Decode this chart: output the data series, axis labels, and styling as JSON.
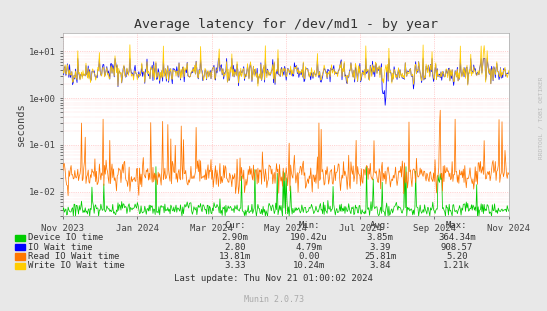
{
  "title": "Average latency for /dev/md1 - by year",
  "ylabel": "seconds",
  "background_color": "#e8e8e8",
  "plot_bg_color": "#ffffff",
  "grid_color": "#ffaaaa",
  "x_labels": [
    "Nov 2023",
    "Jan 2024",
    "Mar 2024",
    "May 2024",
    "Jul 2024",
    "Sep 2024",
    "Nov 2024"
  ],
  "y_tick_labels": [
    "1e-02",
    "1e-01",
    "1e+00",
    "1e+01"
  ],
  "ylim_min": 0.003,
  "ylim_max": 25.0,
  "colors": {
    "device_io": "#00cc00",
    "io_wait": "#0000ff",
    "read_io_wait": "#ff7700",
    "write_io_wait": "#ffcc00"
  },
  "legend": [
    {
      "label": "Device IO time",
      "color": "#00cc00"
    },
    {
      "label": "IO Wait time",
      "color": "#0000ff"
    },
    {
      "label": "Read IO Wait time",
      "color": "#ff7700"
    },
    {
      "label": "Write IO Wait time",
      "color": "#ffcc00"
    }
  ],
  "stats_header": [
    "Cur:",
    "Min:",
    "Avg:",
    "Max:"
  ],
  "stats": [
    [
      "2.90m",
      "190.42u",
      "3.85m",
      "364.34m"
    ],
    [
      "2.80",
      "4.79m",
      "3.39",
      "908.57"
    ],
    [
      "13.81m",
      "0.00",
      "25.81m",
      "5.20"
    ],
    [
      "3.33",
      "10.24m",
      "3.84",
      "1.21k"
    ]
  ],
  "last_update": "Last update: Thu Nov 21 01:00:02 2024",
  "munin_version": "Munin 2.0.73",
  "right_label": "RRDTOOL / TOBI OETIKER",
  "n_points": 600
}
